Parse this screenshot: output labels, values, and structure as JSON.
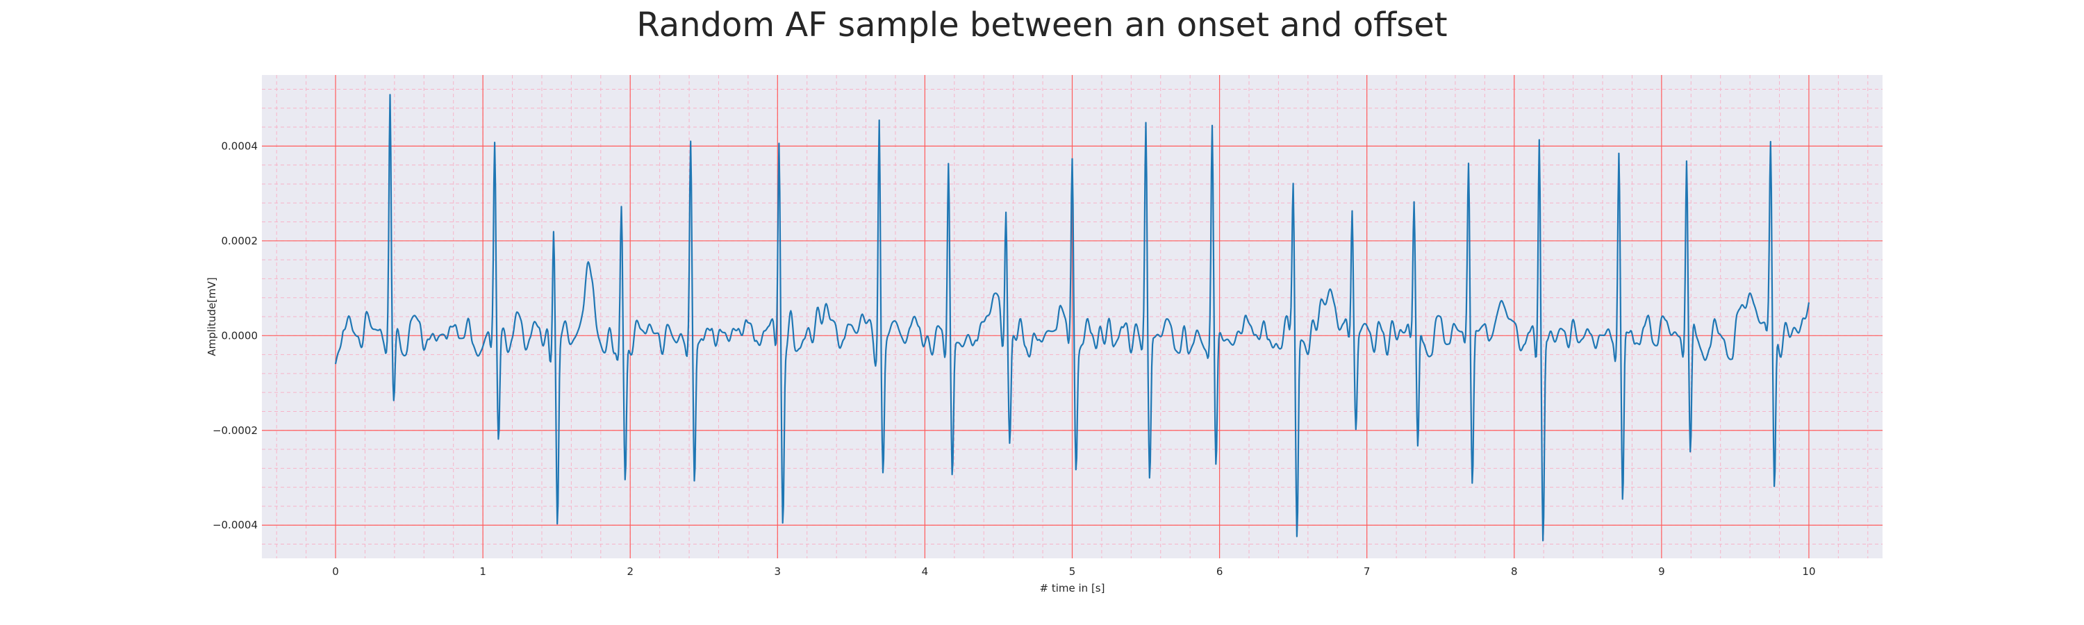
{
  "chart_data": {
    "type": "line",
    "title": "Random AF sample between an onset and offset",
    "xlabel": "# time in [s]",
    "ylabel": "Amplitude[mV]",
    "xlim": [
      -0.5,
      10.5
    ],
    "ylim": [
      -0.00047,
      0.00055
    ],
    "x_ticks": [
      0,
      1,
      2,
      3,
      4,
      5,
      6,
      7,
      8,
      9,
      10
    ],
    "x_tick_labels": [
      "0",
      "1",
      "2",
      "3",
      "4",
      "5",
      "6",
      "7",
      "8",
      "9",
      "10"
    ],
    "y_ticks": [
      -0.0004,
      -0.0002,
      0.0,
      0.0002,
      0.0004
    ],
    "y_tick_labels": [
      "−0.0004",
      "−0.0002",
      "0.0000",
      "0.0002",
      "0.0004"
    ],
    "grid": true,
    "minor_grid": true,
    "colors": {
      "background": "#eaeaf2",
      "line": "#1f77b4",
      "major_grid": "#ff5c5c",
      "minor_grid": "#f7b3c8",
      "text": "#262626"
    },
    "r_peaks": [
      {
        "t": 0.37,
        "r": 0.000495,
        "s": -0.00013
      },
      {
        "t": 1.08,
        "r": 0.00037,
        "s": -0.00022
      },
      {
        "t": 1.48,
        "r": 0.00026,
        "s": -0.0004
      },
      {
        "t": 1.94,
        "r": 0.00028,
        "s": -0.000295
      },
      {
        "t": 2.41,
        "r": 0.0004,
        "s": -0.00035
      },
      {
        "t": 3.01,
        "r": 0.000415,
        "s": -0.000395
      },
      {
        "t": 3.69,
        "r": 0.0005,
        "s": -0.000265
      },
      {
        "t": 4.16,
        "r": 0.000365,
        "s": -0.00029
      },
      {
        "t": 4.55,
        "r": 0.00027,
        "s": -0.00022
      },
      {
        "t": 5.0,
        "r": 0.000375,
        "s": -0.00027
      },
      {
        "t": 5.5,
        "r": 0.000435,
        "s": -0.00029
      },
      {
        "t": 5.95,
        "r": 0.00042,
        "s": -0.000295
      },
      {
        "t": 6.5,
        "r": 0.000335,
        "s": -0.000405
      },
      {
        "t": 6.9,
        "r": 0.00029,
        "s": -0.0002
      },
      {
        "t": 7.32,
        "r": 0.00028,
        "s": -0.00027
      },
      {
        "t": 7.69,
        "r": 0.00034,
        "s": -0.0003
      },
      {
        "t": 8.17,
        "r": 0.00044,
        "s": -0.00042
      },
      {
        "t": 8.71,
        "r": 0.000385,
        "s": -0.000395
      },
      {
        "t": 9.17,
        "r": 0.000365,
        "s": -0.00027
      },
      {
        "t": 9.74,
        "r": 0.000375,
        "s": -0.000335
      }
    ],
    "series": [
      {
        "x_start": 0.0,
        "x_end": 10.0,
        "start_value": -6e-05,
        "end_value": 7e-05,
        "baseline_noise": 4e-05,
        "t_waves": [
          {
            "t": 1.72,
            "amp": 0.00012
          },
          {
            "t": 3.34,
            "amp": 6e-05
          },
          {
            "t": 4.48,
            "amp": 6e-05
          },
          {
            "t": 4.88,
            "amp": 6e-05
          },
          {
            "t": 6.74,
            "amp": 7e-05
          },
          {
            "t": 7.92,
            "amp": 0.0001
          },
          {
            "t": 9.6,
            "amp": 6e-05
          }
        ]
      }
    ]
  }
}
